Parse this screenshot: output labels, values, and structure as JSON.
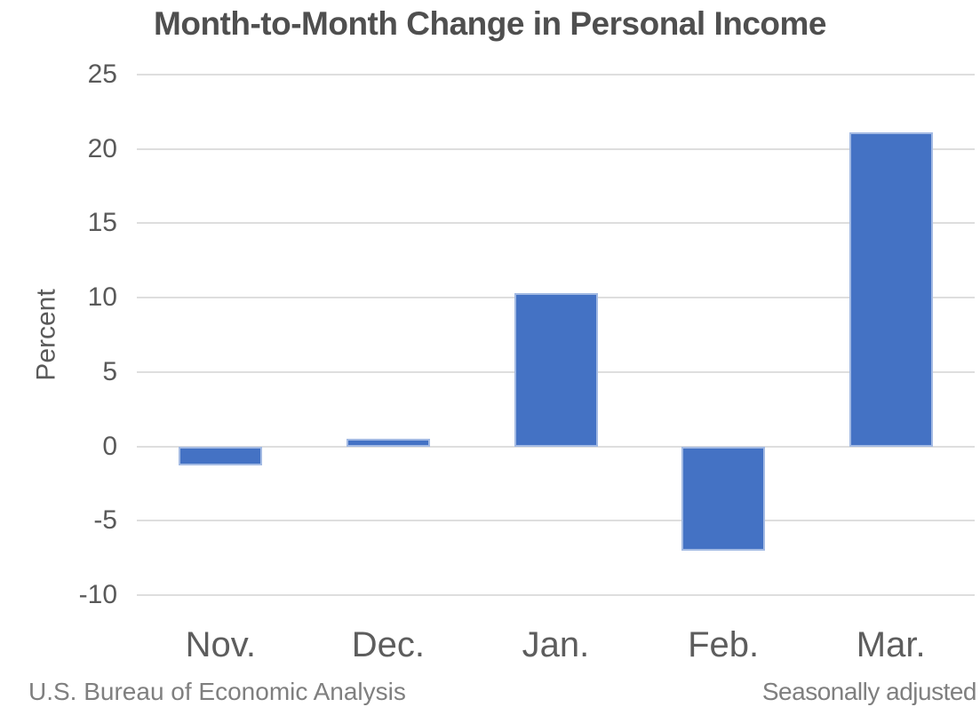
{
  "title": "Month-to-Month Change in Personal Income",
  "footer": {
    "left": "U.S. Bureau of Economic Analysis",
    "right": "Seasonally adjusted"
  },
  "chart_data": {
    "type": "bar",
    "title": "Month-to-Month Change in Personal Income",
    "categories": [
      "Nov.",
      "Dec.",
      "Jan.",
      "Feb.",
      "Mar."
    ],
    "values": [
      -1.3,
      0.5,
      10.3,
      -7.0,
      21.1
    ],
    "xlabel": "",
    "ylabel": "Percent",
    "ylim": [
      -10,
      25
    ],
    "yticks": [
      25,
      20,
      15,
      10,
      5,
      0,
      -5,
      -10
    ],
    "grid": true,
    "legend_position": "none",
    "source_note": "U.S. Bureau of Economic Analysis",
    "adjustment_note": "Seasonally adjusted",
    "bar_color": "#4472C4",
    "bar_border_color": "#A3BAE3",
    "gridline_color": "#DEDEDE",
    "title_color": "#4F4F4F",
    "axis_label_color": "#595959",
    "footer_color": "#7F7F7F"
  }
}
